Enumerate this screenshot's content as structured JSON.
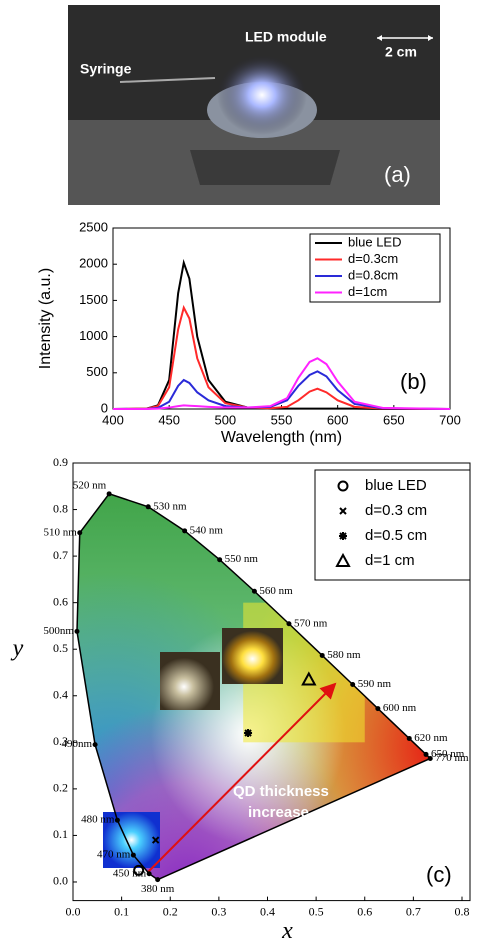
{
  "photo": {
    "labels": [
      "Syringe",
      "LED module",
      "2 cm"
    ],
    "panel_label": "(a)"
  },
  "chart_data": [
    {
      "type": "line",
      "panel_label": "(b)",
      "x_label": "Wavelength (nm)",
      "y_label": "Intensity (a.u.)",
      "x": [
        400,
        430,
        440,
        450,
        458,
        463,
        468,
        475,
        485,
        500,
        520,
        540,
        555,
        565,
        575,
        582,
        590,
        600,
        615,
        640,
        700
      ],
      "xlim": [
        400,
        700
      ],
      "xticks": [
        400,
        450,
        500,
        550,
        600,
        650,
        700
      ],
      "ylim": [
        0,
        2500
      ],
      "yticks": [
        0,
        500,
        1000,
        1500,
        2000,
        2500
      ],
      "legend": "upper right",
      "series": [
        {
          "name": "blue LED",
          "color": "#000000",
          "values": [
            0,
            5,
            50,
            400,
            1600,
            2020,
            1800,
            1000,
            400,
            100,
            20,
            5,
            5,
            5,
            5,
            5,
            5,
            5,
            5,
            0,
            0
          ]
        },
        {
          "name": "d=0.3cm",
          "color": "#ff2a2a",
          "values": [
            0,
            5,
            40,
            300,
            1100,
            1400,
            1250,
            700,
            300,
            80,
            20,
            10,
            30,
            120,
            240,
            280,
            230,
            120,
            30,
            5,
            0
          ]
        },
        {
          "name": "d=0.8cm",
          "color": "#2a2ad8",
          "values": [
            0,
            2,
            15,
            100,
            320,
            400,
            360,
            230,
            120,
            40,
            20,
            30,
            120,
            320,
            470,
            520,
            450,
            260,
            70,
            10,
            0
          ]
        },
        {
          "name": "d=1cm",
          "color": "#ff22ff",
          "values": [
            0,
            0,
            5,
            20,
            40,
            50,
            45,
            40,
            30,
            20,
            20,
            40,
            150,
            430,
            650,
            700,
            620,
            380,
            100,
            15,
            0
          ]
        }
      ]
    },
    {
      "type": "scatter",
      "panel_label": "(c)",
      "x_label": "x",
      "y_label": "y",
      "xlim": [
        0,
        0.8
      ],
      "xticks": [
        {
          "value": 0,
          "label": "0.0"
        },
        0.1,
        0.2,
        0.3,
        0.4,
        0.5,
        0.6,
        0.7,
        0.8
      ],
      "ylim": [
        -0.04,
        0.9
      ],
      "yticks": [
        {
          "value": 0,
          "label": "0.0"
        },
        0.1,
        0.2,
        0.3,
        0.4,
        0.5,
        0.6,
        0.7,
        0.8,
        0.9
      ],
      "legend": "upper right",
      "annotation": [
        "QD thickness",
        "increase"
      ],
      "locus": {
        "x": [
          0.1741,
          0.1566,
          0.1241,
          0.0913,
          0.0454,
          0.0082,
          0.0139,
          0.0743,
          0.1547,
          0.2296,
          0.3016,
          0.3731,
          0.4441,
          0.5125,
          0.5752,
          0.627,
          0.6915,
          0.726,
          0.7347
        ],
        "y": [
          0.005,
          0.0177,
          0.0578,
          0.1327,
          0.295,
          0.5384,
          0.7502,
          0.8338,
          0.8059,
          0.7543,
          0.6923,
          0.6245,
          0.5547,
          0.4866,
          0.4242,
          0.3725,
          0.3083,
          0.274,
          0.2653
        ],
        "labels": [
          "380 nm",
          "450 nm",
          "470 nm",
          "480 nm",
          "490nm",
          "500nm",
          "510 nm",
          "520 nm",
          "530 nm",
          "540 nm",
          "550 nm",
          "560 nm",
          "570 nm",
          "580 nm",
          "590 nm",
          "600 nm",
          "620 nm",
          "650 nm",
          "770 nm"
        ]
      },
      "series": [
        {
          "name": "blue LED",
          "marker": "circle",
          "color": "#000000",
          "x": [
            0.135
          ],
          "values": [
            0.025
          ]
        },
        {
          "name": "d=0.3 cm",
          "marker": "x",
          "color": "#000000",
          "x": [
            0.17
          ],
          "values": [
            0.09
          ]
        },
        {
          "name": "d=0.5 cm",
          "marker": "star",
          "color": "#000000",
          "x": [
            0.36
          ],
          "values": [
            0.32
          ]
        },
        {
          "name": "d=1 cm",
          "marker": "triangle",
          "color": "#000000",
          "x": [
            0.485
          ],
          "values": [
            0.435
          ]
        }
      ]
    }
  ]
}
